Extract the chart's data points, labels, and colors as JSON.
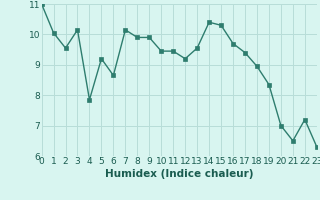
{
  "x": [
    0,
    1,
    2,
    3,
    4,
    5,
    6,
    7,
    8,
    9,
    10,
    11,
    12,
    13,
    14,
    15,
    16,
    17,
    18,
    19,
    20,
    21,
    22,
    23
  ],
  "y": [
    11.0,
    10.05,
    9.55,
    10.15,
    7.85,
    9.2,
    8.65,
    10.15,
    9.9,
    9.9,
    9.45,
    9.45,
    9.2,
    9.55,
    10.4,
    10.3,
    9.7,
    9.4,
    8.95,
    8.35,
    7.0,
    6.5,
    7.2,
    6.3
  ],
  "xlabel": "Humidex (Indice chaleur)",
  "ylim": [
    6,
    11
  ],
  "xlim": [
    0,
    23
  ],
  "yticks": [
    6,
    7,
    8,
    9,
    10,
    11
  ],
  "xticks": [
    0,
    1,
    2,
    3,
    4,
    5,
    6,
    7,
    8,
    9,
    10,
    11,
    12,
    13,
    14,
    15,
    16,
    17,
    18,
    19,
    20,
    21,
    22,
    23
  ],
  "line_color": "#2e7d6e",
  "marker_color": "#2e7d6e",
  "bg_color": "#d8f5f0",
  "grid_color": "#b8ddd8",
  "xlabel_fontsize": 7.5,
  "tick_fontsize": 6.5
}
